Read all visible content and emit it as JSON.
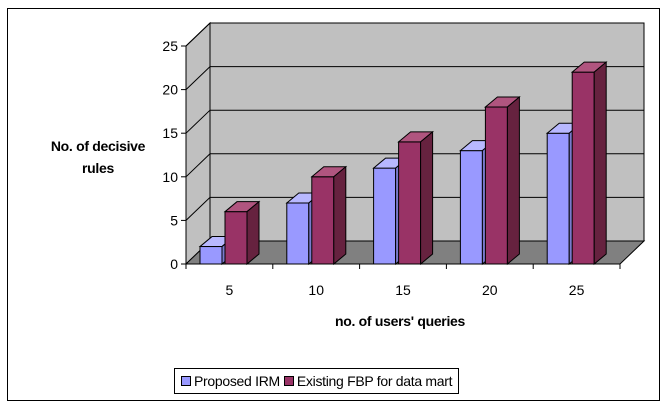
{
  "chart_data": {
    "type": "bar",
    "categories": [
      "5",
      "10",
      "15",
      "20",
      "25"
    ],
    "series": [
      {
        "name": "Proposed IRM",
        "values": [
          2,
          7,
          11,
          13,
          15
        ],
        "color": "#9999FF"
      },
      {
        "name": "Existing FBP for data mart",
        "values": [
          6,
          10,
          14,
          18,
          22
        ],
        "color": "#993366"
      }
    ],
    "title": "",
    "xlabel": "no. of users' queries",
    "ylabel": "No. of decisive rules",
    "ylim": [
      0,
      25
    ],
    "yticks": [
      "0",
      "5",
      "10",
      "15",
      "20",
      "25"
    ],
    "grid": true,
    "three_d": true,
    "legend_position": "bottom",
    "wall_color": "#C0C0C0",
    "floor_color": "#808080"
  },
  "labels": {
    "ylabel_line1": "No. of decisive",
    "ylabel_line2": "rules"
  }
}
